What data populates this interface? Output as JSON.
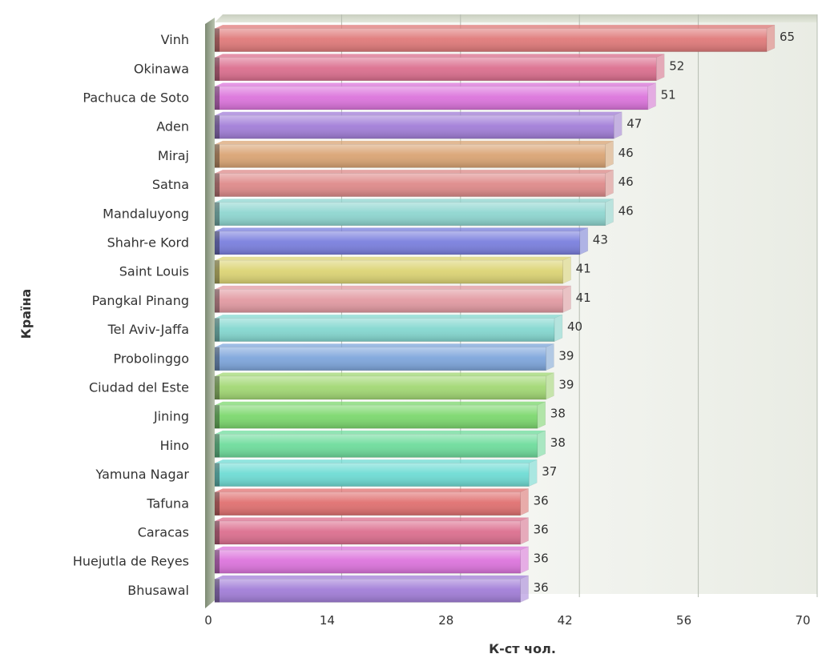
{
  "chart_data": {
    "type": "bar",
    "orientation": "horizontal",
    "categories": [
      "Vinh",
      "Okinawa",
      "Pachuca de Soto",
      "Aden",
      "Miraj",
      "Satna",
      "Mandaluyong",
      "Shahr-e Kord",
      "Saint Louis",
      "Pangkal Pinang",
      "Tel Aviv-Jaffa",
      "Probolinggo",
      "Ciudad del Este",
      "Jining",
      "Hino",
      "Yamuna Nagar",
      "Tafuna",
      "Caracas",
      "Huejutla de Reyes",
      "Bhusawal"
    ],
    "values": [
      65,
      52,
      51,
      47,
      46,
      46,
      46,
      43,
      41,
      41,
      40,
      39,
      39,
      38,
      38,
      37,
      36,
      36,
      36,
      36
    ],
    "colors": [
      "#e07a7a",
      "#dc6f8f",
      "#dc74dc",
      "#a27ed8",
      "#daa474",
      "#de8a8a",
      "#8ed6d0",
      "#7a7fde",
      "#dcd474",
      "#e29aa2",
      "#84d8d0",
      "#7ea6dc",
      "#a2d874",
      "#7cd86e",
      "#6edc9c",
      "#6edcd4",
      "#e07070",
      "#dc6f8f",
      "#dc74dc",
      "#a27ed8"
    ],
    "xlabel": "К-ст чол.",
    "ylabel": "Країна",
    "xlim": [
      0,
      70
    ],
    "xticks": [
      0,
      14,
      28,
      42,
      56,
      70
    ],
    "grid": true,
    "legend": "none"
  }
}
